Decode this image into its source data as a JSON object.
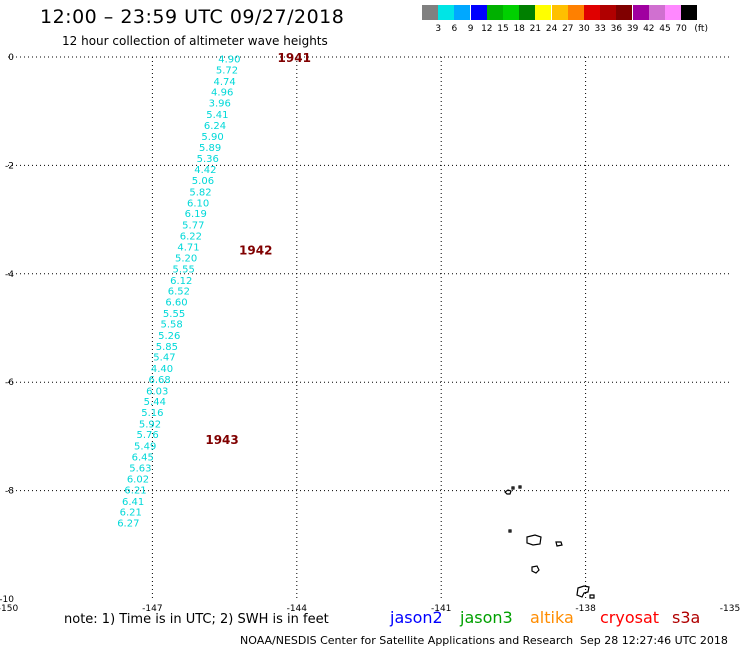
{
  "header": {
    "title": "12:00 – 23:59 UTC 09/27/2018",
    "subtitle": "12 hour collection of altimeter wave heights"
  },
  "colorbar": {
    "colors": [
      "#808080",
      "#00e5e5",
      "#00a8ff",
      "#0000ff",
      "#00b000",
      "#00d000",
      "#008000",
      "#ffff00",
      "#ffc000",
      "#ff8000",
      "#e00000",
      "#b00000",
      "#800000",
      "#a000a0",
      "#d070d0",
      "#ff88ff",
      "#000000"
    ],
    "labels": [
      "3",
      "6",
      "9",
      "12",
      "15",
      "18",
      "21",
      "24",
      "27",
      "30",
      "33",
      "36",
      "39",
      "42",
      "45",
      "70"
    ],
    "unit": "(ft)"
  },
  "map": {
    "lon_ticks": [
      "-150",
      "-147",
      "-144",
      "-141",
      "-138",
      "-135"
    ],
    "lat_ticks": [
      "0",
      "-2",
      "-4",
      "-6",
      "-8",
      "-10"
    ],
    "lon_range": [
      -150,
      -135
    ],
    "lat_range": [
      -10,
      0
    ],
    "grid": "dotted",
    "track_color": "#00d8d8",
    "pass_label_color": "#800000",
    "passes": [
      {
        "label": "1941",
        "lon": -144.4,
        "lat": 0
      },
      {
        "label": "1942",
        "lon": -145.2,
        "lat": -3.55
      },
      {
        "label": "1943",
        "lon": -145.9,
        "lat": -7.05
      }
    ],
    "track": [
      {
        "v": "4.90",
        "lon": -145.4,
        "lat": -0.03
      },
      {
        "v": "5.72",
        "lon": -145.45,
        "lat": -0.23
      },
      {
        "v": "4.74",
        "lon": -145.5,
        "lat": -0.44
      },
      {
        "v": "4.96",
        "lon": -145.55,
        "lat": -0.64
      },
      {
        "v": "3.96",
        "lon": -145.6,
        "lat": -0.84
      },
      {
        "v": "5.41",
        "lon": -145.65,
        "lat": -1.05
      },
      {
        "v": "6.24",
        "lon": -145.7,
        "lat": -1.25
      },
      {
        "v": "5.90",
        "lon": -145.75,
        "lat": -1.46
      },
      {
        "v": "5.89",
        "lon": -145.8,
        "lat": -1.66
      },
      {
        "v": "5.36",
        "lon": -145.85,
        "lat": -1.86
      },
      {
        "v": "4.42",
        "lon": -145.9,
        "lat": -2.07
      },
      {
        "v": "5.06",
        "lon": -145.95,
        "lat": -2.27
      },
      {
        "v": "5.82",
        "lon": -146.0,
        "lat": -2.48
      },
      {
        "v": "6.10",
        "lon": -146.05,
        "lat": -2.68
      },
      {
        "v": "6.19",
        "lon": -146.1,
        "lat": -2.88
      },
      {
        "v": "5.77",
        "lon": -146.15,
        "lat": -3.09
      },
      {
        "v": "6.22",
        "lon": -146.2,
        "lat": -3.29
      },
      {
        "v": "4.71",
        "lon": -146.25,
        "lat": -3.5
      },
      {
        "v": "5.20",
        "lon": -146.3,
        "lat": -3.7
      },
      {
        "v": "5.55",
        "lon": -146.35,
        "lat": -3.9
      },
      {
        "v": "6.12",
        "lon": -146.4,
        "lat": -4.11
      },
      {
        "v": "6.52",
        "lon": -146.45,
        "lat": -4.31
      },
      {
        "v": "6.60",
        "lon": -146.5,
        "lat": -4.51
      },
      {
        "v": "5.55",
        "lon": -146.55,
        "lat": -4.72
      },
      {
        "v": "5.58",
        "lon": -146.6,
        "lat": -4.92
      },
      {
        "v": "5.26",
        "lon": -146.65,
        "lat": -5.13
      },
      {
        "v": "5.85",
        "lon": -146.7,
        "lat": -5.33
      },
      {
        "v": "5.47",
        "lon": -146.75,
        "lat": -5.53
      },
      {
        "v": "4.40",
        "lon": -146.8,
        "lat": -5.74
      },
      {
        "v": "6.68",
        "lon": -146.85,
        "lat": -5.94
      },
      {
        "v": "6.03",
        "lon": -146.9,
        "lat": -6.15
      },
      {
        "v": "5.44",
        "lon": -146.95,
        "lat": -6.35
      },
      {
        "v": "5.16",
        "lon": -147.0,
        "lat": -6.55
      },
      {
        "v": "5.92",
        "lon": -147.05,
        "lat": -6.76
      },
      {
        "v": "5.76",
        "lon": -147.1,
        "lat": -6.96
      },
      {
        "v": "5.49",
        "lon": -147.15,
        "lat": -7.17
      },
      {
        "v": "6.45",
        "lon": -147.2,
        "lat": -7.37
      },
      {
        "v": "5.63",
        "lon": -147.25,
        "lat": -7.57
      },
      {
        "v": "6.02",
        "lon": -147.3,
        "lat": -7.78
      },
      {
        "v": "6.21",
        "lon": -147.35,
        "lat": -7.98
      },
      {
        "v": "6.41",
        "lon": -147.4,
        "lat": -8.19
      },
      {
        "v": "6.21",
        "lon": -147.45,
        "lat": -8.39
      },
      {
        "v": "6.27",
        "lon": -147.5,
        "lat": -8.59
      }
    ]
  },
  "note": "note:  1) Time is in UTC;  2) SWH is in feet",
  "satellites": [
    {
      "name": "jason2",
      "color": "#0000ff"
    },
    {
      "name": "jason3",
      "color": "#00a000"
    },
    {
      "name": "altika",
      "color": "#ff8c00"
    },
    {
      "name": "cryosat",
      "color": "#ff0000"
    },
    {
      "name": "s3a",
      "color": "#b00000"
    }
  ],
  "footer": {
    "credit": "NOAA/NESDIS Center for Satellite Applications and Research",
    "timestamp": "Sep 28 12:27:46 UTC 2018"
  }
}
